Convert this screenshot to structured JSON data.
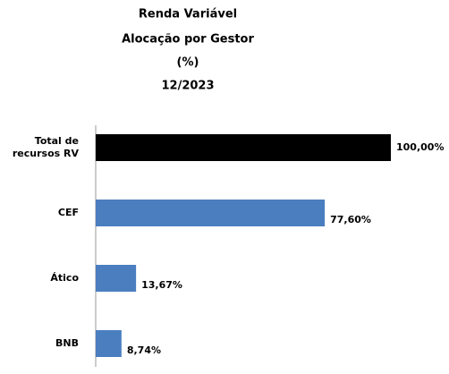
{
  "chart_data": {
    "type": "bar",
    "orientation": "horizontal",
    "title": [
      "Renda Variável",
      "Alocação por Gestor",
      "(%)",
      "12/2023"
    ],
    "categories": [
      "Total de recursos RV",
      "CEF",
      "Ático",
      "BNB"
    ],
    "values": [
      100,
      77.6,
      13.67,
      8.74
    ],
    "value_labels": [
      "100,00%",
      "77,60%",
      "13,67%",
      "8,74%"
    ],
    "colors": [
      "#000000",
      "#4a7ebf",
      "#4a7ebf",
      "#4a7ebf"
    ]
  }
}
